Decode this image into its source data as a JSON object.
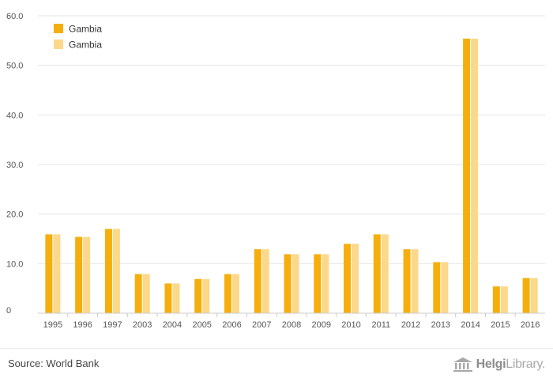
{
  "chart_data": {
    "type": "bar",
    "categories": [
      "1995",
      "1996",
      "1997",
      "2003",
      "2004",
      "2005",
      "2006",
      "2007",
      "2008",
      "2009",
      "2010",
      "2011",
      "2012",
      "2013",
      "2014",
      "2015",
      "2016"
    ],
    "series": [
      {
        "name": "Gambia",
        "color": "#f5ae0c",
        "values": [
          15.9,
          15.4,
          17.0,
          7.9,
          6.0,
          6.9,
          7.9,
          12.9,
          11.9,
          11.9,
          14.0,
          15.9,
          12.9,
          10.3,
          55.4,
          5.4,
          7.1
        ]
      },
      {
        "name": "Gambia",
        "color": "#fcd88a",
        "values": [
          15.9,
          15.4,
          17.0,
          7.9,
          6.0,
          6.9,
          7.9,
          12.9,
          11.9,
          11.9,
          14.0,
          15.9,
          12.9,
          10.3,
          55.4,
          5.4,
          7.1
        ]
      }
    ],
    "yticks": [
      "0",
      "10.0",
      "20.0",
      "30.0",
      "40.0",
      "50.0",
      "60.0"
    ],
    "ylim": [
      0,
      60
    ],
    "title": "",
    "xlabel": "",
    "ylabel": "",
    "grid": true,
    "legend": "top-left"
  },
  "footer": {
    "source": "Source: World Bank",
    "brand_bold": "Helgi",
    "brand_rest": "Library."
  },
  "colors": {
    "grid": "#e6e6e6",
    "axis": "#cccccc",
    "tick_text": "#555555"
  }
}
